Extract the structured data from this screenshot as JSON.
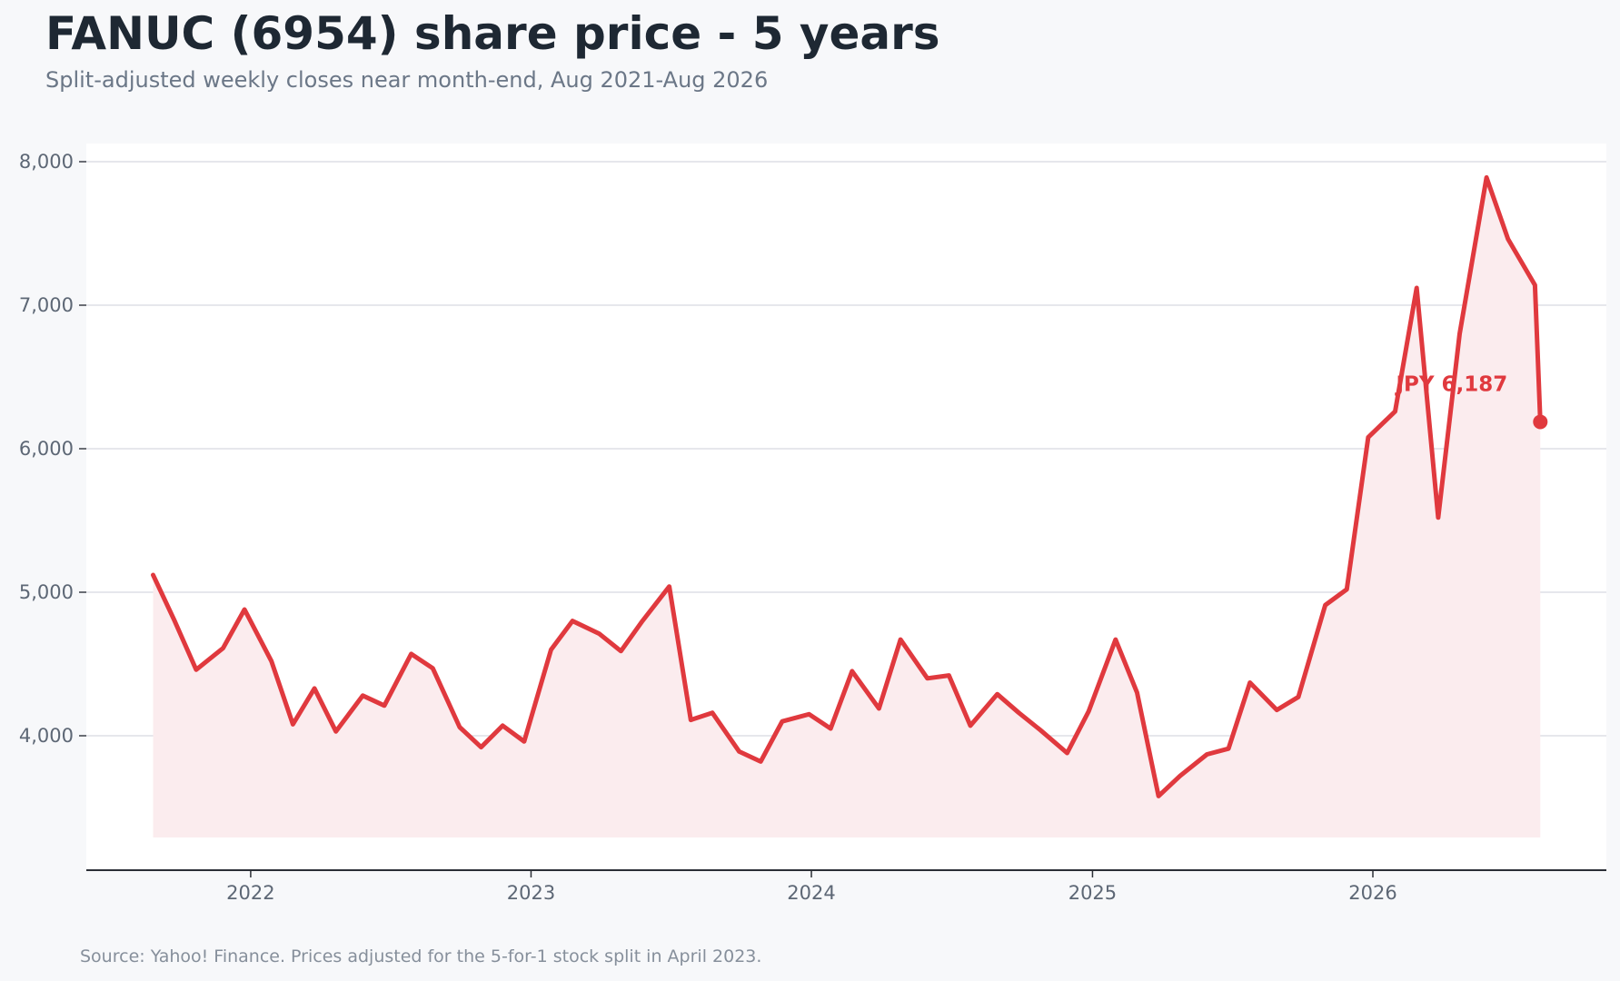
{
  "header": {
    "title": "FANUC (6954) share price - 5 years",
    "subtitle": "Split-adjusted weekly closes near month-end, Aug 2021-Aug 2026"
  },
  "footer": {
    "source": "Source: Yahoo! Finance. Prices adjusted for the 5-for-1 stock split in April 2023."
  },
  "colors": {
    "line": "#e0393e",
    "fill": "#fbecee",
    "grid": "#dddfe5",
    "plot_bg": "#ffffff"
  },
  "chart_data": {
    "type": "line",
    "title": "FANUC (6954) share price - 5 years",
    "subtitle": "Split-adjusted weekly closes near month-end, Aug 2021-Aug 2026",
    "xlabel": "",
    "ylabel": "",
    "x_ticks": [
      "2022",
      "2023",
      "2024",
      "2025",
      "2026"
    ],
    "y_ticks": [
      4000,
      5000,
      6000,
      7000,
      8000
    ],
    "y_tick_labels": [
      "4,000",
      "5,000",
      "6,000",
      "7,000",
      "8,000"
    ],
    "ylim": [
      3000,
      8000
    ],
    "xlim": [
      "2021-06-01",
      "2026-11-01"
    ],
    "grid": "horizontal",
    "area_fill": true,
    "last_value_label": "JPY 6,187",
    "series": [
      {
        "x": [
          "2021-08-27",
          "2021-09-24",
          "2021-10-22",
          "2021-11-26",
          "2021-12-24",
          "2022-01-28",
          "2022-02-25",
          "2022-03-25",
          "2022-04-22",
          "2022-05-27",
          "2022-06-24",
          "2022-07-29",
          "2022-08-26",
          "2022-09-30",
          "2022-10-28",
          "2022-11-25",
          "2022-12-23",
          "2023-01-27",
          "2023-02-24",
          "2023-03-31",
          "2023-04-28",
          "2023-05-26",
          "2023-06-30",
          "2023-07-28",
          "2023-08-25",
          "2023-09-29",
          "2023-10-27",
          "2023-11-24",
          "2023-12-29",
          "2024-01-26",
          "2024-02-23",
          "2024-03-29",
          "2024-04-26",
          "2024-05-31",
          "2024-06-28",
          "2024-07-26",
          "2024-08-30",
          "2024-09-27",
          "2024-10-25",
          "2024-11-29",
          "2024-12-27",
          "2025-01-31",
          "2025-02-28",
          "2025-03-28",
          "2025-04-25",
          "2025-05-30",
          "2025-06-27",
          "2025-07-25",
          "2025-08-29",
          "2025-09-26",
          "2025-10-31",
          "2025-11-28",
          "2025-12-26",
          "2026-01-30",
          "2026-02-27",
          "2026-03-27",
          "2026-04-24",
          "2026-05-29",
          "2026-06-26",
          "2026-07-31",
          "2026-08-07"
        ],
        "values": [
          5120,
          4800,
          4460,
          4610,
          4880,
          4520,
          4080,
          4330,
          4030,
          4280,
          4210,
          4570,
          4470,
          4060,
          3920,
          4070,
          3960,
          4600,
          4800,
          4710,
          4590,
          4800,
          5040,
          4110,
          4160,
          3890,
          3820,
          4100,
          4150,
          4050,
          4450,
          4190,
          4670,
          4400,
          4420,
          4070,
          4290,
          4160,
          4040,
          3880,
          4170,
          4670,
          4300,
          3580,
          3720,
          3870,
          3910,
          4370,
          4180,
          4270,
          4910,
          5020,
          6080,
          6260,
          7120,
          5520,
          6800,
          7890,
          7460,
          7140,
          6187
        ]
      }
    ]
  }
}
